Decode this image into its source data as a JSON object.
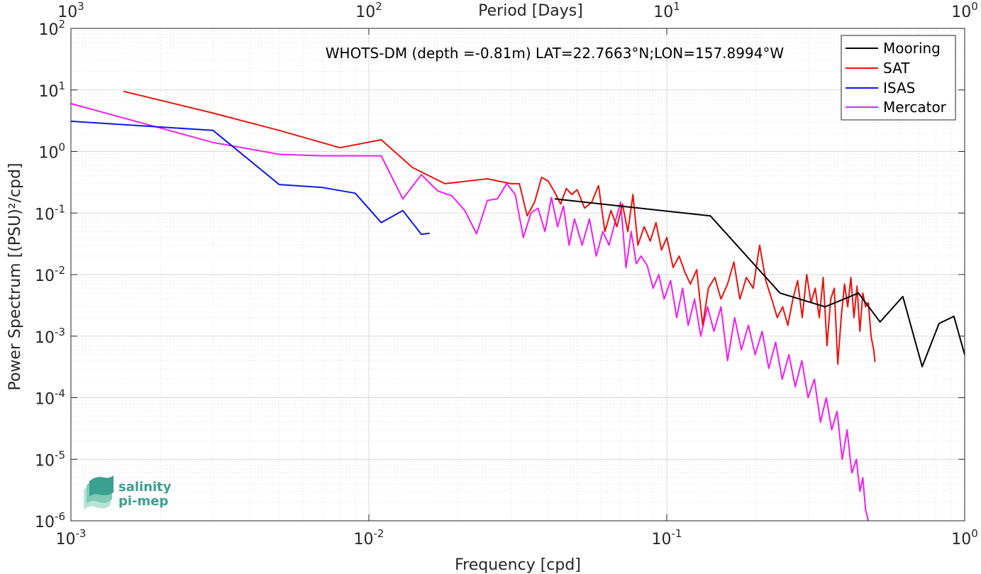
{
  "chart_data": {
    "type": "line",
    "title": "WHOTS-DM (depth =-0.81m) LAT=22.7663°N;LON=157.8994°W",
    "xlabel": "Frequency [cpd]",
    "ylabel": "Power Spectrum [(PSU)²/cpd]",
    "top_axis_label": "Period [Days]",
    "x_scale": "log",
    "y_scale": "log",
    "xlim": [
      0.001,
      1
    ],
    "ylim": [
      1e-06,
      100
    ],
    "x_ticks": [
      {
        "value": 0.001,
        "base": "10",
        "exp": "-3"
      },
      {
        "value": 0.01,
        "base": "10",
        "exp": "-2"
      },
      {
        "value": 0.1,
        "base": "10",
        "exp": "-1"
      },
      {
        "value": 1,
        "base": "10",
        "exp": "0"
      }
    ],
    "top_ticks": [
      {
        "value": 0.001,
        "base": "10",
        "exp": "3"
      },
      {
        "value": 0.01,
        "base": "10",
        "exp": "2"
      },
      {
        "value": 0.1,
        "base": "10",
        "exp": "1"
      },
      {
        "value": 1,
        "base": "10",
        "exp": "0"
      }
    ],
    "y_ticks": [
      {
        "value": 1e-06,
        "base": "10",
        "exp": "-6"
      },
      {
        "value": 1e-05,
        "base": "10",
        "exp": "-5"
      },
      {
        "value": 0.0001,
        "base": "10",
        "exp": "-4"
      },
      {
        "value": 0.001,
        "base": "10",
        "exp": "-3"
      },
      {
        "value": 0.01,
        "base": "10",
        "exp": "-2"
      },
      {
        "value": 0.1,
        "base": "10",
        "exp": "-1"
      },
      {
        "value": 1,
        "base": "10",
        "exp": "0"
      },
      {
        "value": 10,
        "base": "10",
        "exp": "1"
      },
      {
        "value": 100,
        "base": "10",
        "exp": "2"
      }
    ],
    "grid": true,
    "legend_position": "top-right",
    "series": [
      {
        "name": "Mooring",
        "color": "#000000",
        "x": [
          0.042,
          0.14,
          0.24,
          0.34,
          0.44,
          0.52,
          0.62,
          0.72,
          0.82,
          0.92,
          1.0
        ],
        "y": [
          0.17,
          0.09,
          0.005,
          0.003,
          0.005,
          0.0017,
          0.0044,
          0.00032,
          0.0016,
          0.0021,
          0.0005
        ]
      },
      {
        "name": "SAT",
        "color": "#e8130f",
        "x": [
          0.0015,
          0.003,
          0.005,
          0.008,
          0.011,
          0.014,
          0.018,
          0.025,
          0.03,
          0.032,
          0.034,
          0.036,
          0.038,
          0.04,
          0.042,
          0.044,
          0.046,
          0.048,
          0.05,
          0.053,
          0.056,
          0.059,
          0.062,
          0.065,
          0.068,
          0.071,
          0.074,
          0.077,
          0.08,
          0.084,
          0.088,
          0.092,
          0.096,
          0.1,
          0.105,
          0.11,
          0.115,
          0.12,
          0.126,
          0.132,
          0.138,
          0.145,
          0.152,
          0.16,
          0.168,
          0.176,
          0.185,
          0.195,
          0.205,
          0.215,
          0.225,
          0.235,
          0.245,
          0.255,
          0.265,
          0.275,
          0.285,
          0.295,
          0.305,
          0.315,
          0.325,
          0.335,
          0.345,
          0.355,
          0.365,
          0.375,
          0.385,
          0.395,
          0.405,
          0.415,
          0.425,
          0.435,
          0.445,
          0.455,
          0.465,
          0.475,
          0.485,
          0.495,
          0.5
        ],
        "y": [
          9.5,
          4.2,
          2.2,
          1.15,
          1.55,
          0.55,
          0.3,
          0.36,
          0.3,
          0.3,
          0.09,
          0.15,
          0.38,
          0.33,
          0.22,
          0.14,
          0.25,
          0.2,
          0.24,
          0.12,
          0.15,
          0.28,
          0.05,
          0.11,
          0.06,
          0.14,
          0.05,
          0.2,
          0.03,
          0.06,
          0.035,
          0.07,
          0.025,
          0.04,
          0.013,
          0.02,
          0.011,
          0.007,
          0.012,
          0.0015,
          0.006,
          0.009,
          0.004,
          0.007,
          0.016,
          0.004,
          0.009,
          0.006,
          0.03,
          0.008,
          0.004,
          0.002,
          0.003,
          0.0015,
          0.004,
          0.008,
          0.002,
          0.01,
          0.0035,
          0.006,
          0.002,
          0.009,
          0.0007,
          0.004,
          0.006,
          0.00035,
          0.002,
          0.007,
          0.003,
          0.009,
          0.002,
          0.0065,
          0.0012,
          0.005,
          0.003,
          0.0035,
          0.001,
          0.0006,
          0.00038
        ]
      },
      {
        "name": "ISAS",
        "color": "#0d19e8",
        "x": [
          0.001,
          0.003,
          0.005,
          0.007,
          0.009,
          0.011,
          0.013,
          0.015,
          0.016
        ],
        "y": [
          3.1,
          2.2,
          0.29,
          0.26,
          0.21,
          0.07,
          0.11,
          0.045,
          0.047
        ]
      },
      {
        "name": "Mercator",
        "color": "#f01ef0",
        "x": [
          0.001,
          0.003,
          0.005,
          0.007,
          0.009,
          0.011,
          0.013,
          0.015,
          0.017,
          0.019,
          0.021,
          0.023,
          0.025,
          0.027,
          0.029,
          0.031,
          0.033,
          0.035,
          0.037,
          0.039,
          0.041,
          0.043,
          0.045,
          0.047,
          0.049,
          0.052,
          0.055,
          0.058,
          0.061,
          0.064,
          0.067,
          0.07,
          0.073,
          0.076,
          0.079,
          0.082,
          0.086,
          0.09,
          0.094,
          0.098,
          0.103,
          0.108,
          0.113,
          0.118,
          0.124,
          0.13,
          0.137,
          0.144,
          0.152,
          0.16,
          0.169,
          0.178,
          0.188,
          0.198,
          0.209,
          0.22,
          0.232,
          0.244,
          0.257,
          0.27,
          0.284,
          0.298,
          0.313,
          0.328,
          0.343,
          0.358,
          0.373,
          0.388,
          0.403,
          0.418,
          0.433,
          0.445,
          0.455,
          0.465,
          0.475
        ],
        "y": [
          6.0,
          1.4,
          0.9,
          0.85,
          0.85,
          0.85,
          0.17,
          0.42,
          0.23,
          0.19,
          0.11,
          0.046,
          0.16,
          0.17,
          0.3,
          0.2,
          0.04,
          0.1,
          0.12,
          0.05,
          0.18,
          0.06,
          0.13,
          0.03,
          0.08,
          0.03,
          0.08,
          0.02,
          0.05,
          0.03,
          0.07,
          0.15,
          0.013,
          0.05,
          0.015,
          0.02,
          0.014,
          0.006,
          0.01,
          0.004,
          0.008,
          0.002,
          0.006,
          0.0015,
          0.004,
          0.001,
          0.003,
          0.0012,
          0.003,
          0.0004,
          0.002,
          0.0006,
          0.0015,
          0.0005,
          0.0012,
          0.0003,
          0.0008,
          0.0002,
          0.0005,
          0.00015,
          0.0004,
          0.0001,
          0.0002,
          4e-05,
          0.0001,
          3e-05,
          6e-05,
          1e-05,
          3e-05,
          6e-06,
          1e-05,
          3e-06,
          5e-06,
          1.5e-06,
          1e-06
        ]
      }
    ]
  },
  "logo": {
    "line1": "salinity",
    "line2": "pi-mep",
    "color": "#3aa08f"
  }
}
